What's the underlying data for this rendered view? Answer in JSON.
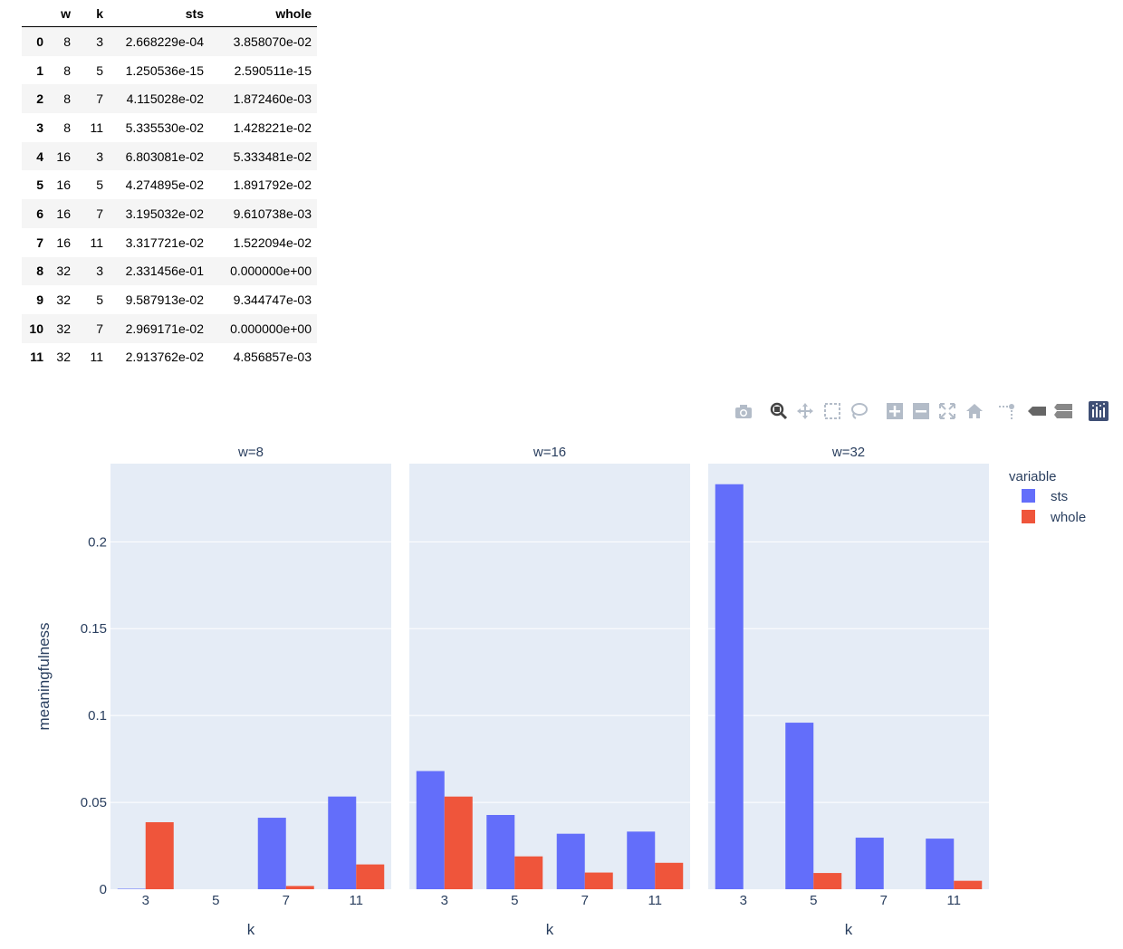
{
  "table": {
    "columns": [
      "",
      "w",
      "k",
      "sts",
      "whole"
    ],
    "rows": [
      [
        "0",
        "8",
        "3",
        "2.668229e-04",
        "3.858070e-02"
      ],
      [
        "1",
        "8",
        "5",
        "1.250536e-15",
        "2.590511e-15"
      ],
      [
        "2",
        "8",
        "7",
        "4.115028e-02",
        "1.872460e-03"
      ],
      [
        "3",
        "8",
        "11",
        "5.335530e-02",
        "1.428221e-02"
      ],
      [
        "4",
        "16",
        "3",
        "6.803081e-02",
        "5.333481e-02"
      ],
      [
        "5",
        "16",
        "5",
        "4.274895e-02",
        "1.891792e-02"
      ],
      [
        "6",
        "16",
        "7",
        "3.195032e-02",
        "9.610738e-03"
      ],
      [
        "7",
        "16",
        "11",
        "3.317721e-02",
        "1.522094e-02"
      ],
      [
        "8",
        "32",
        "3",
        "2.331456e-01",
        "0.000000e+00"
      ],
      [
        "9",
        "32",
        "5",
        "9.587913e-02",
        "9.344747e-03"
      ],
      [
        "10",
        "32",
        "7",
        "2.969171e-02",
        "0.000000e+00"
      ],
      [
        "11",
        "32",
        "11",
        "2.913762e-02",
        "4.856857e-03"
      ]
    ]
  },
  "modebar": {
    "icons": [
      "camera-icon",
      "zoom-icon",
      "pan-icon",
      "box-select-icon",
      "lasso-select-icon",
      "zoom-in-icon",
      "zoom-out-icon",
      "autoscale-icon",
      "reset-axes-icon",
      "spike-lines-icon",
      "hover-closest-icon",
      "hover-compare-icon",
      "plotly-logo-icon"
    ]
  },
  "chart_data": {
    "type": "bar",
    "barmode": "group",
    "facets": [
      {
        "title": "w=8",
        "w": 8
      },
      {
        "title": "w=16",
        "w": 16
      },
      {
        "title": "w=32",
        "w": 32
      }
    ],
    "categories": [
      "3",
      "5",
      "7",
      "11"
    ],
    "series": [
      {
        "name": "sts",
        "color": "#636efa",
        "values_by_facet": [
          [
            0.0002668229,
            1.250536e-15,
            0.04115028,
            0.0533553
          ],
          [
            0.06803081,
            0.04274895,
            0.03195032,
            0.03317721
          ],
          [
            0.2331456,
            0.09587913,
            0.02969171,
            0.02913762
          ]
        ]
      },
      {
        "name": "whole",
        "color": "#ef553b",
        "values_by_facet": [
          [
            0.0385807,
            2.590511e-15,
            0.00187246,
            0.01428221
          ],
          [
            0.05333481,
            0.01891792,
            0.009610738,
            0.01522094
          ],
          [
            0.0,
            0.009344747,
            0.0,
            0.004856857
          ]
        ]
      }
    ],
    "xlabel": "k",
    "ylabel": "meaningfulness",
    "ylim": [
      0,
      0.245
    ],
    "yticks": [
      0,
      0.05,
      0.1,
      0.15,
      0.2
    ],
    "ytick_labels": [
      "0",
      "0.05",
      "0.1",
      "0.15",
      "0.2"
    ],
    "legend": {
      "title": "variable",
      "placement": "right"
    },
    "plot_bg": "#e5ecf6",
    "grid": true
  }
}
